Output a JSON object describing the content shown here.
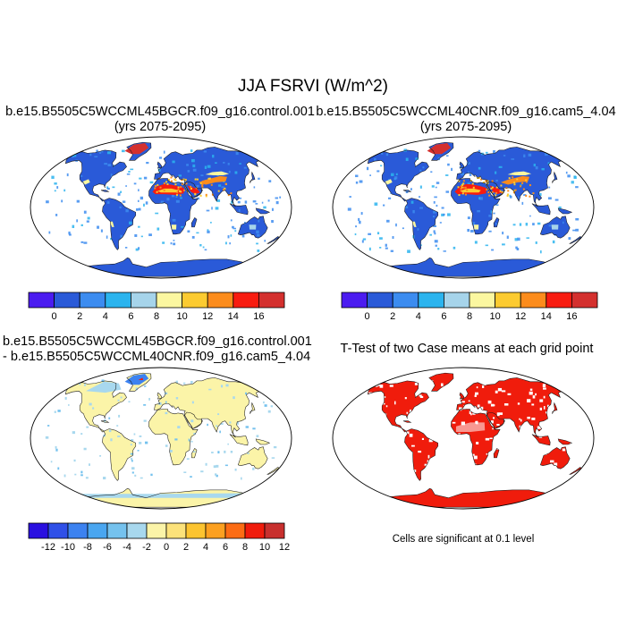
{
  "title": "JJA FSRVI (W/m^2)",
  "panels": [
    {
      "id": "control",
      "title_lines": [
        "b.e15.B5505C5WCCML45BGCR.f09_g16.control.001",
        "(yrs 2075-2095)"
      ],
      "palette": "abs"
    },
    {
      "id": "cam5",
      "title_lines": [
        "b.e15.B5505C5WCCML40CNR.f09_g16.cam5_4.04",
        "(yrs 2075-2095)"
      ],
      "palette": "abs"
    },
    {
      "id": "diff",
      "title_lines": [
        "b.e15.B5505C5WCCML45BGCR.f09_g16.control.001",
        "- b.e15.B5505C5WCCML40CNR.f09_g16.cam5_4.04"
      ],
      "palette": "diff"
    },
    {
      "id": "ttest",
      "title_lines": [
        "T-Test of two Case means at each grid point"
      ],
      "palette": "sig"
    }
  ],
  "colorbars": {
    "abs": {
      "colors": [
        "#4b1cf0",
        "#2a5ad8",
        "#3c8cf0",
        "#2bb4ee",
        "#a6d4ea",
        "#fbf7a0",
        "#fccb30",
        "#fc8c1c",
        "#f81c10",
        "#d4302e"
      ],
      "labels": [
        "0",
        "2",
        "4",
        "6",
        "8",
        "10",
        "12",
        "14",
        "16"
      ]
    },
    "diff": {
      "colors": [
        "#2a10e0",
        "#2f50e8",
        "#3c82f0",
        "#4aa6f0",
        "#75c2ee",
        "#a8d8ee",
        "#fbf4a8",
        "#fce27a",
        "#fcc430",
        "#fca020",
        "#fc6c14",
        "#f01c0c",
        "#c8302e"
      ],
      "labels": [
        "-12",
        "-10",
        "-8",
        "-6",
        "-4",
        "-2",
        "0",
        "2",
        "4",
        "6",
        "8",
        "10",
        "12"
      ]
    }
  },
  "footnote": "Cells are significant at 0.1 level"
}
